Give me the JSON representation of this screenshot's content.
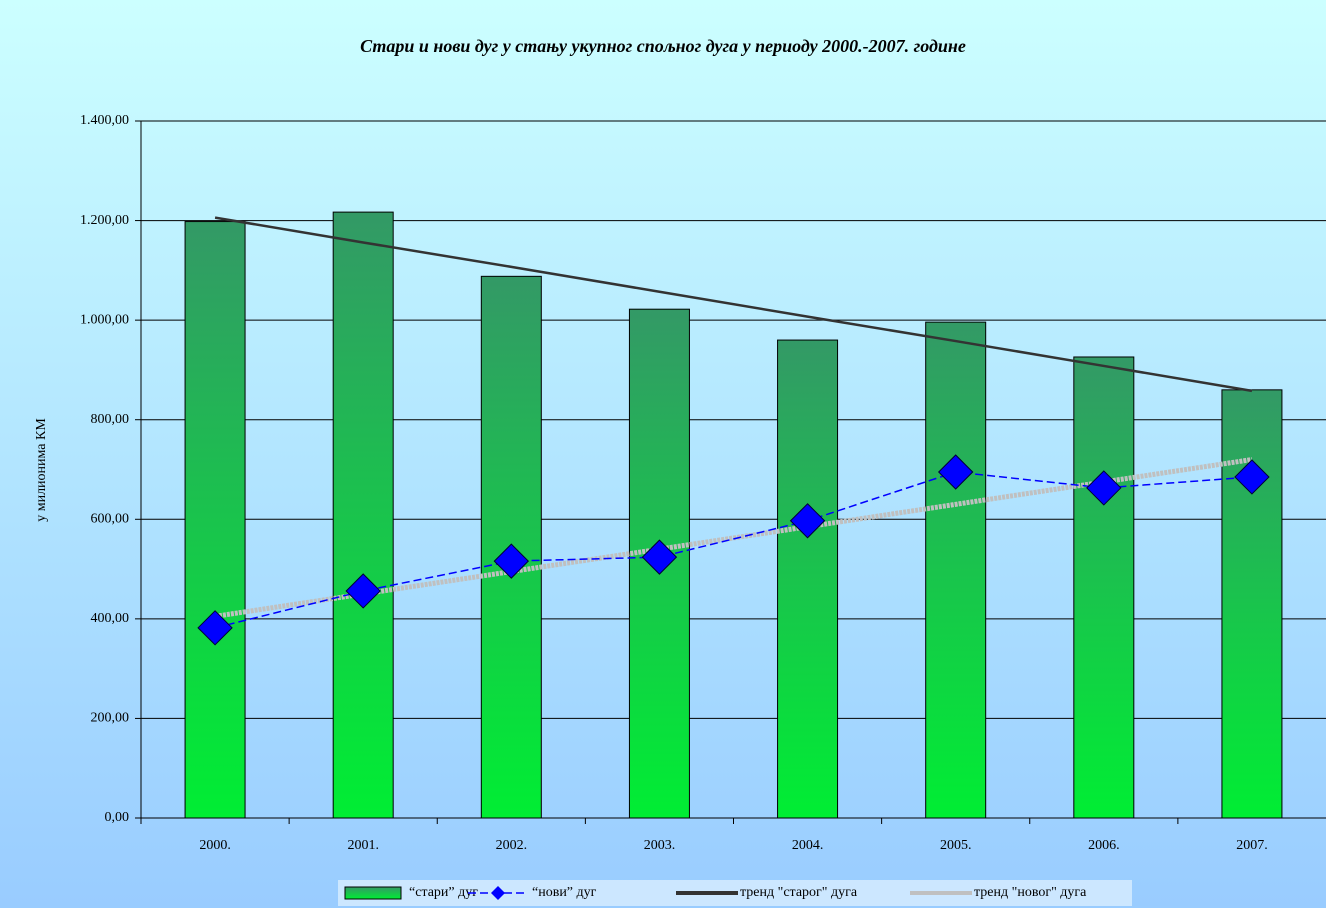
{
  "chart_data": {
    "type": "bar-line",
    "title": "Стари и нови дуг у стању укупног спољног дуга у периоду 2000.-2007. године",
    "y_label": "у милионима КМ",
    "categories": [
      "2000.",
      "2001.",
      "2002.",
      "2003.",
      "2004.",
      "2005.",
      "2006.",
      "2007."
    ],
    "series": [
      {
        "name": "“стари” дуг",
        "kind": "bar",
        "color": "#2e9a5e",
        "values": [
          1198,
          1217,
          1088,
          1022,
          960,
          996,
          926,
          860
        ]
      },
      {
        "name": "“нови” дуг",
        "kind": "line",
        "color": "#0000ff",
        "values": [
          382,
          456,
          516,
          524,
          597,
          695,
          663,
          685
        ]
      },
      {
        "name": "тренд \"старог\" дуга",
        "kind": "trend",
        "color": "#333333",
        "values": [
          1206,
          1156,
          1107,
          1057,
          1007,
          958,
          908,
          858
        ]
      },
      {
        "name": "тренд \"новог\" дуга",
        "kind": "trend",
        "color": "#c0c0c0",
        "values": [
          405,
          450,
          495,
          540,
          585,
          630,
          675,
          720
        ]
      }
    ],
    "ylim": [
      0,
      1400
    ],
    "yticks": [
      {
        "value": 0,
        "label": "0,00"
      },
      {
        "value": 200,
        "label": "200,00"
      },
      {
        "value": 400,
        "label": "400,00"
      },
      {
        "value": 600,
        "label": "600,00"
      },
      {
        "value": 800,
        "label": "800,00"
      },
      {
        "value": 1000,
        "label": "1.000,00"
      },
      {
        "value": 1200,
        "label": "1.200,00"
      },
      {
        "value": 1400,
        "label": "1.400,00"
      }
    ],
    "grid": true,
    "legend": "bottom"
  }
}
